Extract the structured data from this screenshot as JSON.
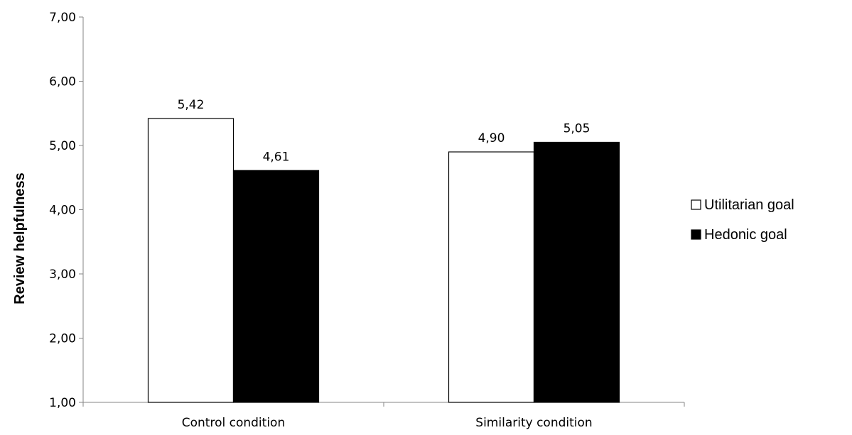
{
  "chart_data": {
    "type": "bar",
    "categories": [
      "Control condition",
      "Similarity condition"
    ],
    "series": [
      {
        "name": "Utilitarian goal",
        "values": [
          5.42,
          4.9
        ],
        "labels": [
          "5,42",
          "4,90"
        ],
        "color": "#ffffff"
      },
      {
        "name": "Hedonic goal",
        "values": [
          4.61,
          5.05
        ],
        "labels": [
          "4,61",
          "5,05"
        ],
        "color": "#000000"
      }
    ],
    "title": "",
    "xlabel": "",
    "ylabel": "Review helpfulness",
    "ylim": [
      1,
      7
    ],
    "yticks": [
      1,
      2,
      3,
      4,
      5,
      6,
      7
    ],
    "ytick_labels": [
      "1,00",
      "2,00",
      "3,00",
      "4,00",
      "5,00",
      "6,00",
      "7,00"
    ],
    "grid": false,
    "legend_position": "right"
  }
}
